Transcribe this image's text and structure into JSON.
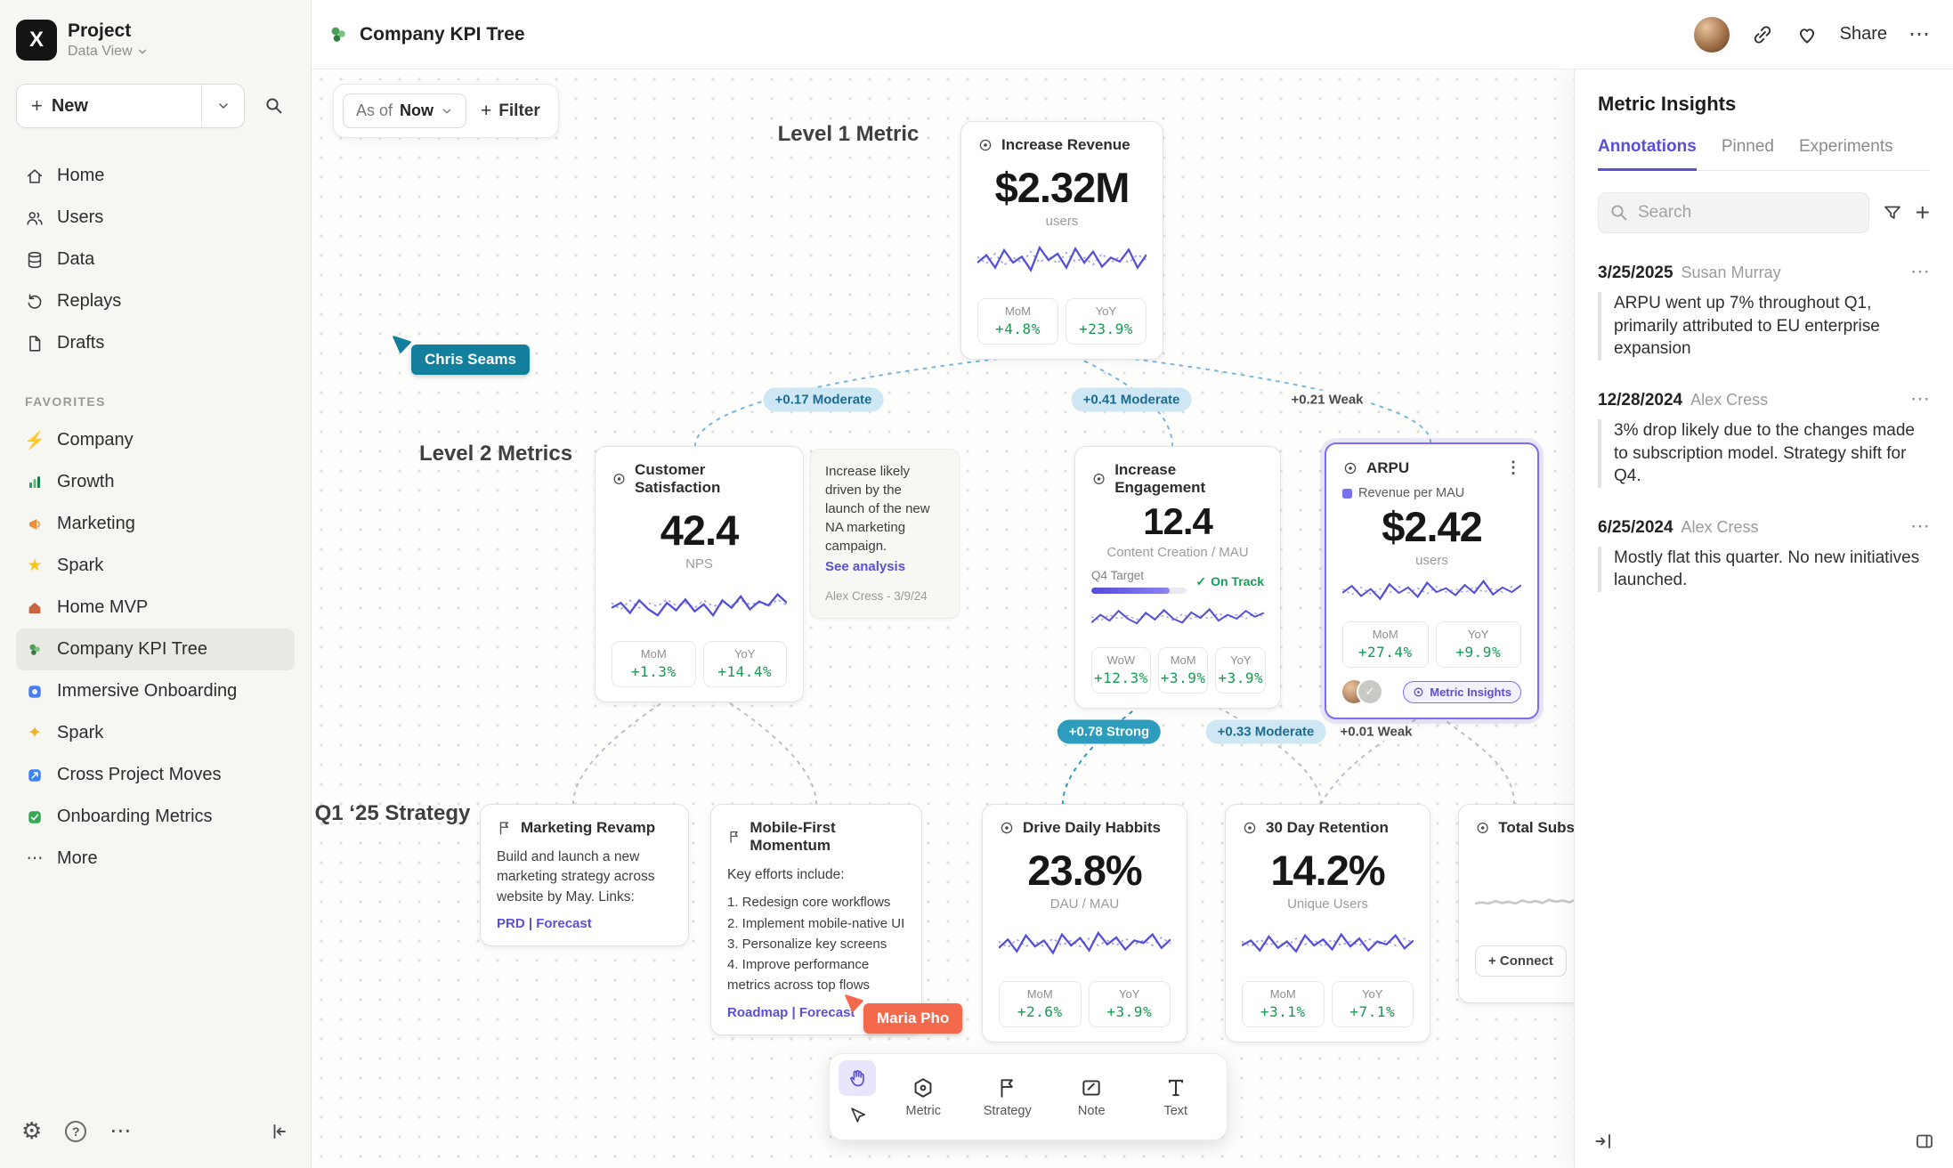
{
  "colors": {
    "accent": "#5b4fd6",
    "positive": "#169a52",
    "cursor_chris": "#127f9d",
    "cursor_maria": "#f4694c",
    "edge_pill_bg": "#cde7f4",
    "edge_pill_strong_bg": "#2d9cbd"
  },
  "icons": {
    "more": "⋯",
    "gear": "⚙",
    "help": "?",
    "plus": "+",
    "star": "★",
    "sparkle": "✦",
    "bolt": "⚡",
    "check": "✓",
    "dots_vertical": "⋮"
  },
  "sidebar": {
    "logo_letter": "X",
    "project_title": "Project",
    "project_subtitle": "Data View",
    "new_label": "New",
    "nav": [
      {
        "label": "Home"
      },
      {
        "label": "Users"
      },
      {
        "label": "Data"
      },
      {
        "label": "Replays"
      },
      {
        "label": "Drafts"
      }
    ],
    "favorites_header": "FAVORITES",
    "favorites": [
      {
        "label": "Company"
      },
      {
        "label": "Growth"
      },
      {
        "label": "Marketing"
      },
      {
        "label": "Spark"
      },
      {
        "label": "Home MVP"
      },
      {
        "label": "Company KPI Tree"
      },
      {
        "label": "Immersive Onboarding"
      },
      {
        "label": "Spark"
      },
      {
        "label": "Cross Project Moves"
      },
      {
        "label": "Onboarding Metrics"
      }
    ],
    "more_label": "More"
  },
  "header": {
    "title": "Company KPI Tree",
    "share_label": "Share"
  },
  "canvas": {
    "asof_label": "As of",
    "asof_value": "Now",
    "filter_label": "Filter",
    "level1_label": "Level 1 Metric",
    "level2_label": "Level 2 Metrics",
    "strategy_label": "Q1 ‘25 Strategy",
    "cursors": [
      {
        "name": "Chris Seams",
        "color": "#127f9d"
      },
      {
        "name": "Maria Pho",
        "color": "#f4694c"
      }
    ],
    "edges": [
      {
        "label": "+0.17 Moderate"
      },
      {
        "label": "+0.41 Moderate"
      },
      {
        "label": "+0.21 Weak"
      },
      {
        "label": "+0.78 Strong"
      },
      {
        "label": "+0.33 Moderate"
      },
      {
        "label": "+0.01 Weak"
      }
    ],
    "cards": {
      "revenue": {
        "title": "Increase Revenue",
        "value": "$2.32M",
        "unit": "users",
        "stats": [
          {
            "label": "MoM",
            "value": "+4.8%"
          },
          {
            "label": "YoY",
            "value": "+23.9%"
          }
        ],
        "spark": {
          "solid": [
            0.5,
            0.65,
            0.4,
            0.75,
            0.5,
            0.62,
            0.35,
            0.8,
            0.55,
            0.68,
            0.4,
            0.78,
            0.5,
            0.72,
            0.42,
            0.6,
            0.52,
            0.76,
            0.4,
            0.66
          ],
          "dotted": [
            0.62,
            0.48,
            0.68,
            0.45,
            0.6,
            0.5,
            0.72,
            0.5,
            0.64,
            0.48,
            0.7,
            0.52,
            0.6,
            0.46,
            0.68,
            0.5,
            0.62,
            0.5,
            0.66,
            0.55
          ]
        }
      },
      "satisfaction": {
        "title": "Customer Satisfaction",
        "value": "42.4",
        "unit": "NPS",
        "stats": [
          {
            "label": "MoM",
            "value": "+1.3%"
          },
          {
            "label": "YoY",
            "value": "+14.4%"
          }
        ],
        "spark": {
          "solid": [
            0.45,
            0.55,
            0.35,
            0.6,
            0.42,
            0.3,
            0.55,
            0.4,
            0.62,
            0.38,
            0.52,
            0.3,
            0.6,
            0.45,
            0.68,
            0.42,
            0.58,
            0.5,
            0.72,
            0.55
          ],
          "dotted": [
            0.55,
            0.42,
            0.6,
            0.45,
            0.55,
            0.48,
            0.62,
            0.5,
            0.55,
            0.45,
            0.6,
            0.48,
            0.54,
            0.5,
            0.6,
            0.52,
            0.56,
            0.48,
            0.62,
            0.5
          ]
        }
      },
      "note": {
        "text": "Increase likely driven by the launch of the new NA marketing campaign.",
        "link": "See analysis",
        "byline": "Alex Cress - 3/9/24"
      },
      "engagement": {
        "title": "Increase Engagement",
        "value": "12.4",
        "unit": "Content Creation / MAU",
        "target_label": "Q4 Target",
        "target_status": "On Track",
        "stats": [
          {
            "label": "WoW",
            "value": "+12.3%"
          },
          {
            "label": "MoM",
            "value": "+3.9%"
          },
          {
            "label": "YoY",
            "value": "+3.9%"
          }
        ],
        "spark": {
          "solid": [
            0.4,
            0.6,
            0.45,
            0.7,
            0.5,
            0.38,
            0.65,
            0.48,
            0.72,
            0.5,
            0.4,
            0.66,
            0.52,
            0.74,
            0.45,
            0.6,
            0.5,
            0.7,
            0.55,
            0.65
          ],
          "dotted": [
            0.55,
            0.45,
            0.6,
            0.5,
            0.58,
            0.48,
            0.62,
            0.52,
            0.58,
            0.46,
            0.62,
            0.5,
            0.58,
            0.5,
            0.64,
            0.52,
            0.6,
            0.5,
            0.64,
            0.55
          ]
        }
      },
      "arpu": {
        "title": "ARPU",
        "legend": "Revenue per MAU",
        "value": "$2.42",
        "unit": "users",
        "stats": [
          {
            "label": "MoM",
            "value": "+27.4%"
          },
          {
            "label": "YoY",
            "value": "+9.9%"
          }
        ],
        "badge": "Metric Insights",
        "spark": {
          "solid": [
            0.5,
            0.68,
            0.42,
            0.6,
            0.35,
            0.72,
            0.5,
            0.64,
            0.4,
            0.76,
            0.52,
            0.62,
            0.44,
            0.7,
            0.5,
            0.8,
            0.46,
            0.64,
            0.52,
            0.7
          ],
          "dotted": [
            0.6,
            0.46,
            0.64,
            0.48,
            0.6,
            0.5,
            0.66,
            0.5,
            0.62,
            0.48,
            0.66,
            0.52,
            0.6,
            0.5,
            0.66,
            0.52,
            0.62,
            0.52,
            0.66,
            0.56
          ]
        }
      },
      "marketing_revamp": {
        "title": "Marketing Revamp",
        "body": "Build and launch a new marketing strategy across website by May. Links:",
        "links": "PRD | Forecast"
      },
      "mobile_first": {
        "title": "Mobile-First Momentum",
        "intro": "Key efforts include:",
        "items": [
          "1. Redesign core workflows",
          "2. Implement mobile-native UI",
          "3. Personalize key screens",
          "4. Improve performance metrics across top flows"
        ],
        "links": "Roadmap | Forecast"
      },
      "daily_habits": {
        "title": "Drive Daily Habbits",
        "value": "23.8%",
        "unit": "DAU / MAU",
        "stats": [
          {
            "label": "MoM",
            "value": "+2.6%"
          },
          {
            "label": "YoY",
            "value": "+3.9%"
          }
        ],
        "spark": {
          "solid": [
            0.45,
            0.62,
            0.38,
            0.7,
            0.48,
            0.6,
            0.35,
            0.72,
            0.5,
            0.65,
            0.4,
            0.75,
            0.52,
            0.66,
            0.42,
            0.6,
            0.55,
            0.72,
            0.45,
            0.62
          ],
          "dotted": [
            0.58,
            0.46,
            0.62,
            0.48,
            0.58,
            0.48,
            0.64,
            0.5,
            0.6,
            0.48,
            0.64,
            0.5,
            0.6,
            0.5,
            0.64,
            0.52,
            0.6,
            0.5,
            0.66,
            0.54
          ]
        }
      },
      "retention": {
        "title": "30 Day Retention",
        "value": "14.2%",
        "unit": "Unique Users",
        "stats": [
          {
            "label": "MoM",
            "value": "+3.1%"
          },
          {
            "label": "YoY",
            "value": "+7.1%"
          }
        ],
        "spark": {
          "solid": [
            0.5,
            0.6,
            0.4,
            0.68,
            0.45,
            0.58,
            0.38,
            0.7,
            0.5,
            0.62,
            0.42,
            0.72,
            0.48,
            0.64,
            0.4,
            0.58,
            0.52,
            0.7,
            0.44,
            0.6
          ],
          "dotted": [
            0.58,
            0.48,
            0.62,
            0.5,
            0.58,
            0.48,
            0.64,
            0.52,
            0.6,
            0.48,
            0.62,
            0.5,
            0.58,
            0.5,
            0.64,
            0.52,
            0.6,
            0.5,
            0.64,
            0.54
          ]
        }
      },
      "total_subs": {
        "title": "Total Subscript",
        "connect_label": "+ Connect",
        "spark": {
          "solid": [
            0.3,
            0.32,
            0.3,
            0.34,
            0.31,
            0.33,
            0.3,
            0.35,
            0.32,
            0.34,
            0.31,
            0.36,
            0.33,
            0.35,
            0.32,
            0.37,
            0.34,
            0.36,
            0.35,
            0.38
          ]
        }
      }
    },
    "toolbar": {
      "tools": [
        {
          "label": "Metric"
        },
        {
          "label": "Strategy"
        },
        {
          "label": "Note"
        },
        {
          "label": "Text"
        }
      ]
    }
  },
  "panel": {
    "title": "Metric Insights",
    "tabs": [
      {
        "label": "Annotations"
      },
      {
        "label": "Pinned"
      },
      {
        "label": "Experiments"
      }
    ],
    "search_placeholder": "Search",
    "annotations": [
      {
        "date": "3/25/2025",
        "author": "Susan Murray",
        "text": "ARPU went up 7% throughout Q1, primarily attributed to EU enterprise expansion"
      },
      {
        "date": "12/28/2024",
        "author": "Alex Cress",
        "text": "3% drop likely due to the changes made to subscription model. Strategy shift for Q4."
      },
      {
        "date": "6/25/2024",
        "author": "Alex Cress",
        "text": "Mostly flat this quarter. No new initiatives launched."
      }
    ]
  }
}
